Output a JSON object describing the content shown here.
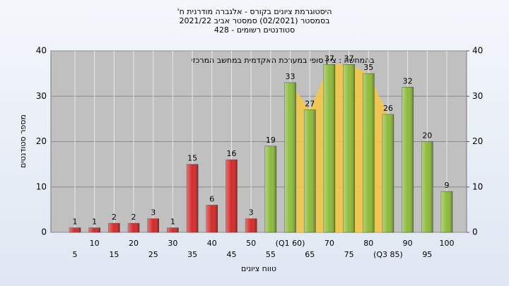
{
  "chart_data": {
    "type": "bar",
    "title": "היסטוגרמת ציונים בקורס - אלגברה מודרנית ח'",
    "subtitle": "בסמסטר  (02/2021)  סמסטר אביב  2021/22",
    "subtitle2": "סטודנטים רשומים - 428",
    "annotation": "בהמחשה : ציון סופי במערכת האקדמית במחשב המרכזי",
    "ylabel": "מספר סטודנטים",
    "xlabel": "טווח ציונים",
    "categories": [
      "5",
      "10",
      "15",
      "20",
      "25",
      "30",
      "35",
      "40",
      "45",
      "50",
      "55",
      "(Q1 60)",
      "65",
      "70",
      "75",
      "80",
      "(Q3 85)",
      "90",
      "95",
      "100"
    ],
    "values": [
      1,
      1,
      2,
      2,
      3,
      1,
      15,
      6,
      16,
      3,
      19,
      33,
      27,
      37,
      37,
      35,
      26,
      32,
      20,
      9
    ],
    "colors": [
      "#d42a2a",
      "#d42a2a",
      "#d42a2a",
      "#d42a2a",
      "#d42a2a",
      "#d42a2a",
      "#d42a2a",
      "#d42a2a",
      "#d42a2a",
      "#d42a2a",
      "#8dbb3a",
      "#8dbb3a",
      "#8dbb3a",
      "#8dbb3a",
      "#8dbb3a",
      "#8dbb3a",
      "#8dbb3a",
      "#8dbb3a",
      "#8dbb3a",
      "#8dbb3a"
    ],
    "ylim": [
      0,
      40
    ],
    "yticks": [
      0,
      10,
      20,
      30,
      40
    ],
    "y2lim": [
      0,
      40
    ],
    "y2ticks": [
      0,
      10,
      20,
      30,
      40
    ],
    "grid": true
  }
}
